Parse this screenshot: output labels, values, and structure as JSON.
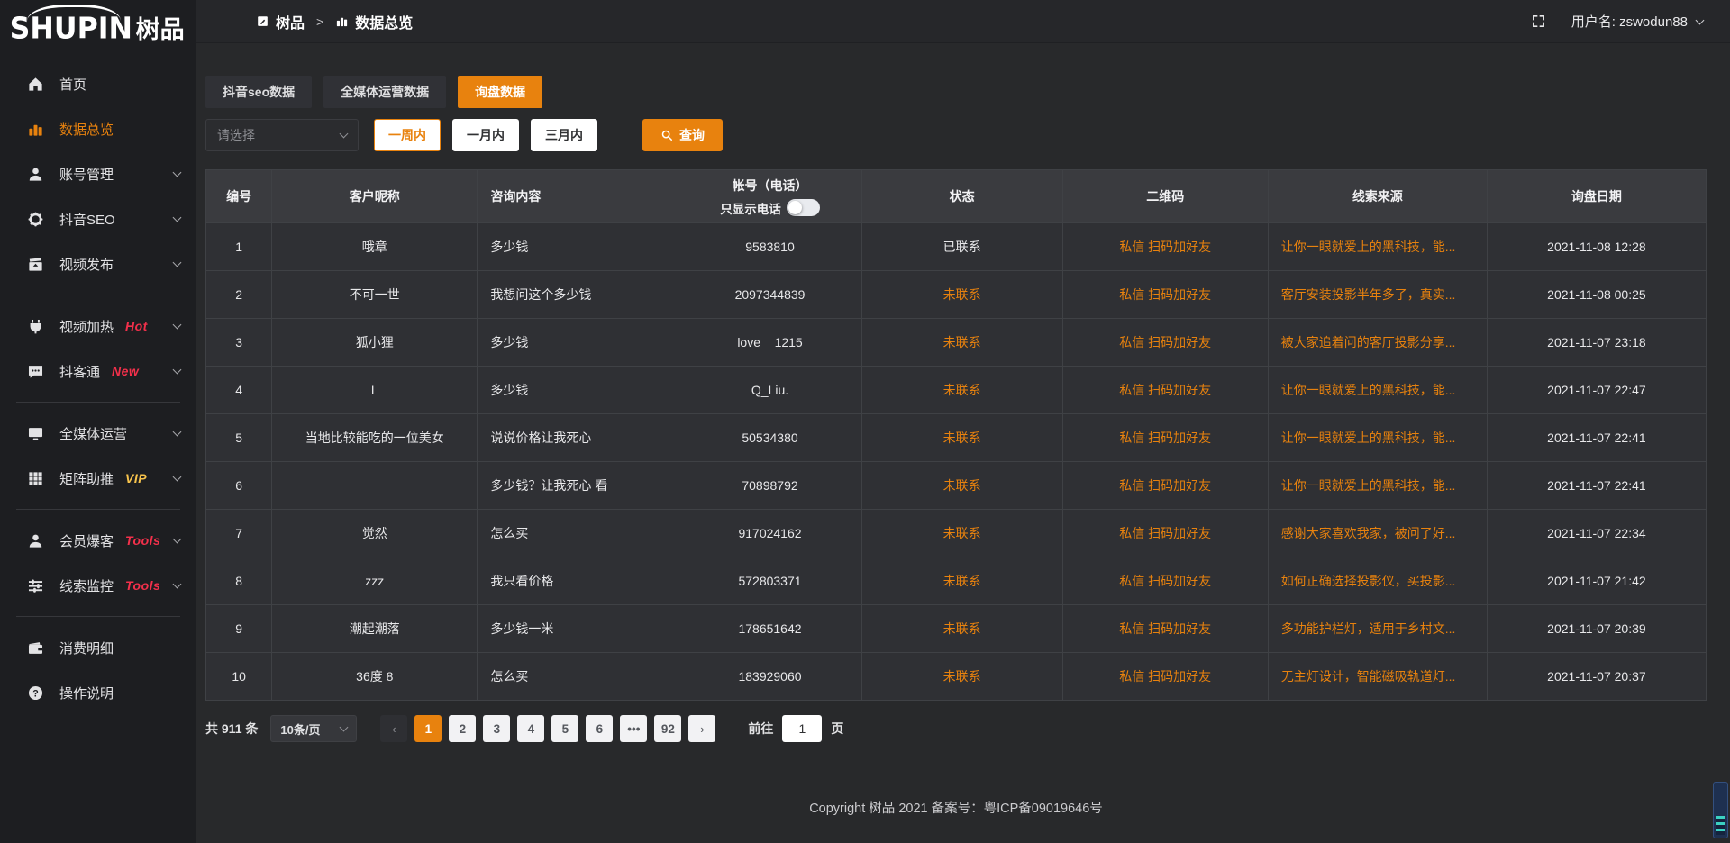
{
  "logo": {
    "text_en": "SHUPIN",
    "text_cn": "树品"
  },
  "topbar": {
    "breadcrumb": {
      "root": "树品",
      "separator": ">",
      "current": "数据总览"
    },
    "username_label": "用户名: zswodun88"
  },
  "sidebar": {
    "items": [
      {
        "icon": "home",
        "label": "首页"
      },
      {
        "icon": "bar-chart",
        "label": "数据总览",
        "active": true
      },
      {
        "icon": "user",
        "label": "账号管理",
        "chevron": true
      },
      {
        "icon": "gear",
        "label": "抖音SEO",
        "chevron": true
      },
      {
        "icon": "video",
        "label": "视频发布",
        "chevron": true
      },
      {
        "divider": true
      },
      {
        "icon": "plug",
        "label": "视频加热",
        "badge": "Hot",
        "badge_color": "#f3304b",
        "chevron": true
      },
      {
        "icon": "chat",
        "label": "抖客通",
        "badge": "New",
        "badge_color": "#f3304b",
        "chevron": true
      },
      {
        "divider": true
      },
      {
        "icon": "monitor",
        "label": "全媒体运营",
        "chevron": true
      },
      {
        "icon": "grid",
        "label": "矩阵助推",
        "badge": "VIP",
        "badge_color": "#f7c34c",
        "chevron": true
      },
      {
        "divider": true
      },
      {
        "icon": "user",
        "label": "会员爆客",
        "badge": "Tools",
        "badge_color": "#f3304b",
        "chevron": true
      },
      {
        "icon": "sliders",
        "label": "线索监控",
        "badge": "Tools",
        "badge_color": "#f3304b",
        "chevron": true
      },
      {
        "divider": true
      },
      {
        "icon": "wallet",
        "label": "消费明细"
      },
      {
        "icon": "question",
        "label": "操作说明"
      }
    ]
  },
  "tabs": [
    {
      "label": "抖音seo数据"
    },
    {
      "label": "全媒体运营数据"
    },
    {
      "label": "询盘数据",
      "active": true
    }
  ],
  "filters": {
    "select_placeholder": "请选择",
    "periods": [
      {
        "label": "一周内",
        "active": true
      },
      {
        "label": "一月内"
      },
      {
        "label": "三月内"
      }
    ],
    "search_label": "查询"
  },
  "table": {
    "headers": [
      "编号",
      "客户昵称",
      "咨询内容",
      "帐号（电话）",
      "状态",
      "二维码",
      "线索来源",
      "询盘日期"
    ],
    "phone_toggle_label": "只显示电话",
    "rows": [
      {
        "no": "1",
        "nickname": "哦章",
        "content": "多少钱",
        "account": "9583810",
        "status": "已联系",
        "contacted": true,
        "qrcode": "私信 扫码加好友",
        "source": "让你一眼就爱上的黑科技，能...",
        "date": "2021-11-08 12:28"
      },
      {
        "no": "2",
        "nickname": "不可一世",
        "content": "我想问这个多少钱",
        "account": "2097344839",
        "status": "未联系",
        "contacted": false,
        "qrcode": "私信 扫码加好友",
        "source": "客厅安装投影半年多了，真实...",
        "date": "2021-11-08 00:25"
      },
      {
        "no": "3",
        "nickname": "狐小狸",
        "content": "多少钱",
        "account": "love__1215",
        "status": "未联系",
        "contacted": false,
        "qrcode": "私信 扫码加好友",
        "source": "被大家追着问的客厅投影分享...",
        "date": "2021-11-07 23:18"
      },
      {
        "no": "4",
        "nickname": "L",
        "content": "多少钱",
        "account": "Q_Liu.",
        "status": "未联系",
        "contacted": false,
        "qrcode": "私信 扫码加好友",
        "source": "让你一眼就爱上的黑科技，能...",
        "date": "2021-11-07 22:47"
      },
      {
        "no": "5",
        "nickname": "当地比较能吃的一位美女",
        "content": "说说价格让我死心",
        "account": "50534380",
        "status": "未联系",
        "contacted": false,
        "qrcode": "私信 扫码加好友",
        "source": "让你一眼就爱上的黑科技，能...",
        "date": "2021-11-07 22:41"
      },
      {
        "no": "6",
        "nickname": "",
        "content": "多少钱？让我死心 看",
        "account": "70898792",
        "status": "未联系",
        "contacted": false,
        "qrcode": "私信 扫码加好友",
        "source": "让你一眼就爱上的黑科技，能...",
        "date": "2021-11-07 22:41"
      },
      {
        "no": "7",
        "nickname": "觉然",
        "content": "怎么买",
        "account": "917024162",
        "status": "未联系",
        "contacted": false,
        "qrcode": "私信 扫码加好友",
        "source": "感谢大家喜欢我家，被问了好...",
        "date": "2021-11-07 22:34"
      },
      {
        "no": "8",
        "nickname": "zzz",
        "content": "我只看价格",
        "account": "572803371",
        "status": "未联系",
        "contacted": false,
        "qrcode": "私信 扫码加好友",
        "source": "如何正确选择投影仪，买投影...",
        "date": "2021-11-07 21:42"
      },
      {
        "no": "9",
        "nickname": "潮起潮落",
        "content": "多少钱一米",
        "account": "178651642",
        "status": "未联系",
        "contacted": false,
        "qrcode": "私信 扫码加好友",
        "source": "多功能护栏灯，适用于乡村文...",
        "date": "2021-11-07 20:39"
      },
      {
        "no": "10",
        "nickname": "36度 8",
        "content": "怎么买",
        "account": "183929060",
        "status": "未联系",
        "contacted": false,
        "qrcode": "私信 扫码加好友",
        "source": "无主灯设计，智能磁吸轨道灯...",
        "date": "2021-11-07 20:37"
      }
    ]
  },
  "pagination": {
    "total_label": "共 911 条",
    "page_size_label": "10条/页",
    "prev_label": "‹",
    "next_label": "›",
    "pages": [
      "1",
      "2",
      "3",
      "4",
      "5",
      "6",
      "•••",
      "92"
    ],
    "active_page": "1",
    "goto_label": "前往",
    "goto_value": "1",
    "unit_label": "页"
  },
  "footer": {
    "copyright": "Copyright 树品 2021 备案号：粤ICP备09019646号"
  },
  "colors": {
    "accent": "#e8820e",
    "danger": "#f3304b",
    "vip": "#f7c34c"
  }
}
